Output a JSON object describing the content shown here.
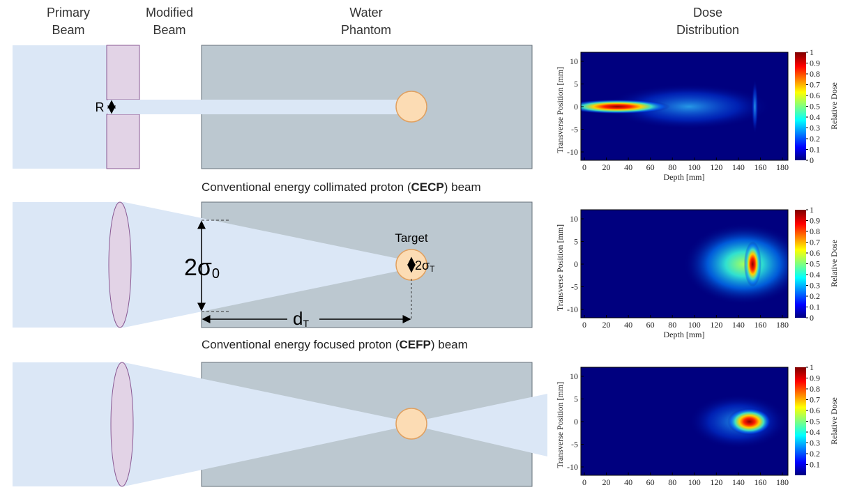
{
  "column_headers": [
    [
      "Primary",
      "Beam"
    ],
    [
      "Modified",
      "Beam"
    ],
    [
      "Water",
      "Phantom"
    ],
    [
      "Dose",
      "Distribution"
    ]
  ],
  "rows": [
    {
      "caption": {
        "before": "Conventional energy collimated proton (",
        "bold": "CECP",
        "after": ") beam"
      },
      "aperture_label": "R"
    },
    {
      "caption": {
        "before": "Conventional energy focused proton (",
        "bold": "CEFP",
        "after": ") beam"
      },
      "target_label": "Target",
      "beam_width_label": {
        "main": "2σ",
        "sub": "0"
      },
      "target_size_label": {
        "main": "2σ",
        "sub": "T"
      },
      "target_depth_label": {
        "main": "d",
        "sub": "T"
      }
    },
    {}
  ],
  "dose_plots": [
    {
      "x_label": "Depth [mm]",
      "y_label": "Transverse Position [mm]",
      "colorbar_label": "Relative Dose",
      "xticks": [
        0,
        20,
        40,
        60,
        80,
        100,
        120,
        140,
        160,
        180
      ],
      "yticks": [
        10,
        5,
        0,
        -5,
        -10
      ],
      "colorbar_ticks": [
        1,
        0.9,
        0.8,
        0.7,
        0.6,
        0.5,
        0.4,
        0.3,
        0.2,
        0.1,
        0
      ]
    },
    {
      "x_label": "Depth [mm]",
      "y_label": "Transverse Position [mm]",
      "colorbar_label": "Relative Dose",
      "xticks": [
        0,
        20,
        40,
        60,
        80,
        100,
        120,
        140,
        160,
        180
      ],
      "yticks": [
        10,
        5,
        0,
        -5,
        -10
      ],
      "colorbar_ticks": [
        1,
        0.9,
        0.8,
        0.7,
        0.6,
        0.5,
        0.4,
        0.3,
        0.2,
        0.1,
        0
      ]
    },
    {
      "y_label": "Transverse Position [mm]",
      "colorbar_label": "Relative Dose",
      "xticks": [
        0,
        20,
        40,
        60,
        80,
        100,
        120,
        140,
        160,
        180
      ],
      "yticks": [
        10,
        5,
        0,
        -5,
        -10
      ],
      "colorbar_ticks": [
        1,
        0.9,
        0.8,
        0.7,
        0.6,
        0.5,
        0.4,
        0.3,
        0.2,
        0.1
      ]
    }
  ]
}
